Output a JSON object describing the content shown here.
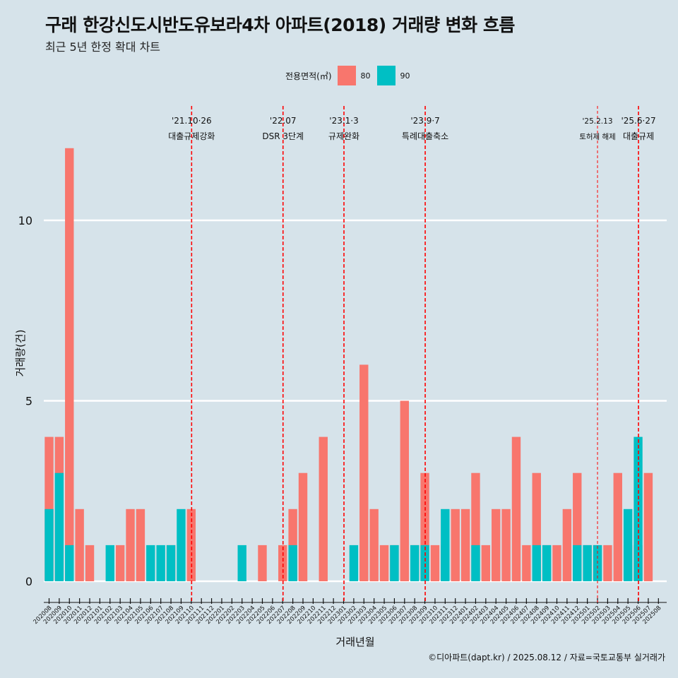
{
  "title": "구래 한강신도시반도유보라4차 아파트(2018) 거래량 변화 흐름",
  "subtitle": "최근 5년 한정 확대 차트",
  "caption": "©디아파트(dapt.kr) / 2025.08.12 / 자료=국토교통부 실거래가",
  "legend": {
    "title": "전용면적(㎡)",
    "items": [
      {
        "label": "80",
        "color": "#f8766d"
      },
      {
        "label": "90",
        "color": "#00bfc4"
      }
    ]
  },
  "chart_data": {
    "type": "bar",
    "stacked": false,
    "xlabel": "거래년월",
    "ylabel": "거래량(건)",
    "ylim": [
      0,
      12
    ],
    "yticks": [
      0,
      5,
      10
    ],
    "grid": "horizontal",
    "legend_position": "top",
    "categories": [
      "202008",
      "202009",
      "202010",
      "202011",
      "202012",
      "202101",
      "202102",
      "202103",
      "202104",
      "202105",
      "202106",
      "202107",
      "202108",
      "202109",
      "202110",
      "202111",
      "202112",
      "202201",
      "202202",
      "202203",
      "202204",
      "202205",
      "202206",
      "202207",
      "202208",
      "202209",
      "202210",
      "202211",
      "202212",
      "202301",
      "202302",
      "202303",
      "202304",
      "202305",
      "202306",
      "202307",
      "202308",
      "202309",
      "202310",
      "202311",
      "202312",
      "202401",
      "202402",
      "202403",
      "202404",
      "202405",
      "202406",
      "202407",
      "202408",
      "202409",
      "202410",
      "202411",
      "202412",
      "202501",
      "202502",
      "202503",
      "202504",
      "202505",
      "202506",
      "202507",
      "202508"
    ],
    "series": [
      {
        "name": "80",
        "color": "#f8766d",
        "values": [
          4,
          4,
          12,
          2,
          1,
          0,
          0,
          1,
          2,
          2,
          0,
          0,
          1,
          0,
          2,
          0,
          0,
          0,
          0,
          0,
          0,
          1,
          0,
          1,
          2,
          3,
          0,
          4,
          0,
          0,
          0,
          6,
          2,
          1,
          1,
          5,
          1,
          3,
          1,
          1,
          2,
          2,
          3,
          1,
          2,
          2,
          4,
          1,
          3,
          1,
          1,
          2,
          3,
          1,
          1,
          1,
          3,
          1,
          1,
          3,
          0
        ]
      },
      {
        "name": "90",
        "color": "#00bfc4",
        "values": [
          2,
          3,
          1,
          0,
          0,
          0,
          1,
          0,
          0,
          0,
          1,
          1,
          1,
          2,
          0,
          0,
          0,
          0,
          0,
          1,
          0,
          0,
          0,
          0,
          1,
          0,
          0,
          0,
          0,
          0,
          1,
          0,
          0,
          0,
          1,
          0,
          1,
          1,
          0,
          2,
          0,
          0,
          1,
          0,
          0,
          0,
          0,
          0,
          1,
          1,
          0,
          0,
          1,
          1,
          1,
          0,
          0,
          2,
          4,
          0,
          0
        ]
      }
    ],
    "annotations": [
      {
        "at": 14.0,
        "line1": "'21.10·26",
        "line2": "대출규제강화"
      },
      {
        "at": 23.0,
        "line1": "'22.07",
        "line2": "DSR 3단계"
      },
      {
        "at": 29.0,
        "line1": "'23.1·3",
        "line2": "규제완화"
      },
      {
        "at": 37.0,
        "line1": "'23.9·7",
        "line2": "특례대출축소"
      },
      {
        "at": 54.0,
        "line1": "'25.2.13",
        "line2": "토허제 해제",
        "thin": true
      },
      {
        "at": 58.0,
        "line1": "'25.6·27",
        "line2": "대출규제"
      }
    ]
  }
}
